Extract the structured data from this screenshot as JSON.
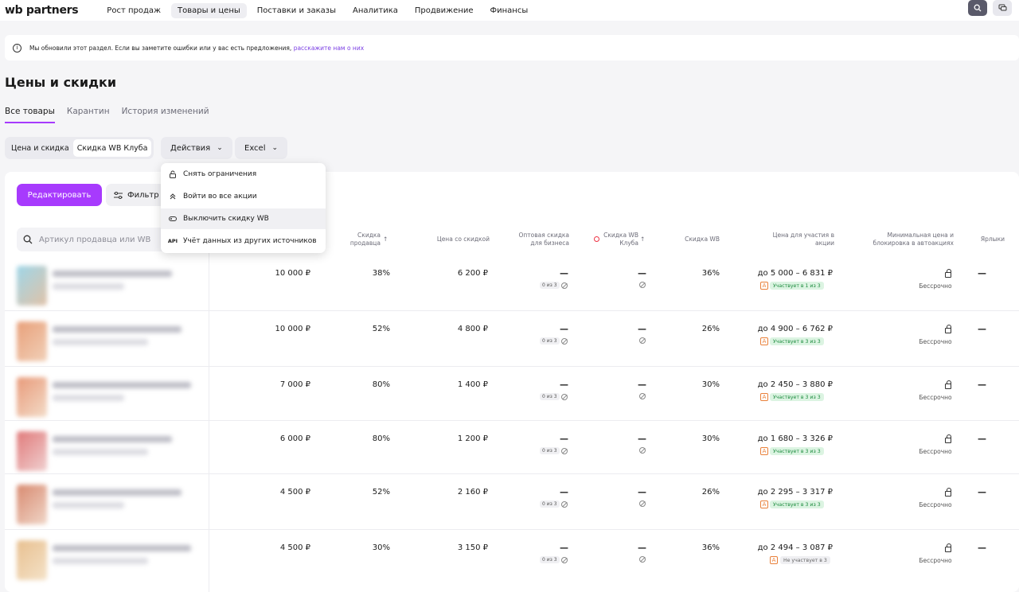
{
  "app": {
    "logo": "wb partners",
    "nav": [
      "Рост продаж",
      "Товары и цены",
      "Поставки и заказы",
      "Аналитика",
      "Продвижение",
      "Финансы"
    ],
    "active_nav": "Товары и цены"
  },
  "notice": {
    "text": "Мы обновили этот раздел. Если вы заметите ошибки или у вас есть предложения,",
    "link": "расскажите нам о них"
  },
  "page": {
    "title": "Цены и скидки",
    "tabs": [
      "Все товары",
      "Карантин",
      "История изменений"
    ],
    "segment": [
      "Цена и скидка",
      "Скидка WB Клуба"
    ],
    "actions_label": "Действия",
    "excel_label": "Excel"
  },
  "toolbar": {
    "edit_label": "Редактировать",
    "filter_label": "Фильтр"
  },
  "search": {
    "placeholder": "Артикул продавца или WB"
  },
  "menu": {
    "items": [
      "Снять ограничения",
      "Войти во все акции",
      "Выключить скидку WB",
      "Учёт данных из других источников"
    ],
    "api_label": "API"
  },
  "columns": {
    "seller_discount": "Скидка продавца",
    "discount_price": "Цена со скидкой",
    "wholesale": "Оптовая скидка для бизнеса",
    "club_discount": "Скидка WB Клуба",
    "wb_discount": "Скидка WB",
    "promo_price": "Цена для участия в акции",
    "min_price": "Минимальная цена и блокировка в автоакциях",
    "labels": "Ярлыки"
  },
  "rows": [
    {
      "price": "10 000 ₽",
      "seller_discount": "38%",
      "discount_price": "6 200 ₽",
      "wholesale": "—",
      "wholesale_badge": "0 из 3",
      "club": "—",
      "wb_discount": "36%",
      "promo_price": "до 5 000 – 6 831 ₽",
      "promo_status": "Участвует в 1 из 3",
      "min_price": "Бессрочно",
      "labels": "—"
    },
    {
      "price": "10 000 ₽",
      "seller_discount": "52%",
      "discount_price": "4 800 ₽",
      "wholesale": "—",
      "wholesale_badge": "0 из 3",
      "club": "—",
      "wb_discount": "26%",
      "promo_price": "до 4 900 – 6 762 ₽",
      "promo_status": "Участвует в 3 из 3",
      "min_price": "Бессрочно",
      "labels": "—"
    },
    {
      "price": "7 000 ₽",
      "seller_discount": "80%",
      "discount_price": "1 400 ₽",
      "wholesale": "—",
      "wholesale_badge": "0 из 3",
      "club": "—",
      "wb_discount": "30%",
      "promo_price": "до 2 450 – 3 880 ₽",
      "promo_status": "Участвует в 3 из 3",
      "min_price": "Бессрочно",
      "labels": "—"
    },
    {
      "price": "6 000 ₽",
      "seller_discount": "80%",
      "discount_price": "1 200 ₽",
      "wholesale": "—",
      "wholesale_badge": "0 из 3",
      "club": "—",
      "wb_discount": "30%",
      "promo_price": "до 1 680 – 3 326 ₽",
      "promo_status": "Участвует в 3 из 3",
      "min_price": "Бессрочно",
      "labels": "—"
    },
    {
      "price": "4 500 ₽",
      "seller_discount": "52%",
      "discount_price": "2 160 ₽",
      "wholesale": "—",
      "wholesale_badge": "0 из 3",
      "club": "—",
      "wb_discount": "26%",
      "promo_price": "до 2 295 – 3 317 ₽",
      "promo_status": "Участвует в 3 из 3",
      "min_price": "Бессрочно",
      "labels": "—"
    },
    {
      "price": "4 500 ₽",
      "seller_discount": "30%",
      "discount_price": "3 150 ₽",
      "wholesale": "—",
      "wholesale_badge": "0 из 3",
      "club": "—",
      "wb_discount": "36%",
      "promo_price": "до 2 494 – 3 087 ₽",
      "promo_status": "Не участвует в 3",
      "min_price": "Бессрочно",
      "labels": "—"
    }
  ]
}
